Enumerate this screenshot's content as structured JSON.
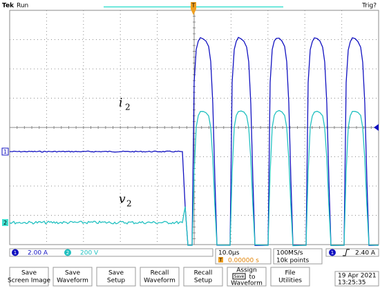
{
  "header": {
    "brand": "Tek",
    "status": "Run",
    "trigger_status": "Trig?",
    "trigger_marker": "T"
  },
  "traces": {
    "i": {
      "symbol": "i",
      "subscript": "2"
    },
    "v": {
      "symbol": "v",
      "subscript": "2"
    }
  },
  "channel_markers": [
    "1",
    "2"
  ],
  "status": {
    "ch1": {
      "number": "1",
      "scale": "2.00 A"
    },
    "ch2": {
      "number": "2",
      "scale": "200 V"
    },
    "timebase": "10.0µs",
    "position_marker": "T",
    "position": "0.00000 s",
    "sample_rate": "100MS/s",
    "record_length": "10k points",
    "trigger": {
      "channel": "1",
      "level": "2.40 A"
    }
  },
  "buttons": [
    [
      "Save",
      "Screen Image"
    ],
    [
      "Save",
      "Waveform"
    ],
    [
      "Save",
      "Setup"
    ],
    [
      "Recall",
      "Waveform"
    ],
    [
      "Recall",
      "Setup"
    ]
  ],
  "assign": {
    "top": "Assign",
    "key": "Save",
    "middle": "to",
    "bottom": "Waveform"
  },
  "file_button": [
    "File",
    "Utilities"
  ],
  "clock": {
    "date": "19 Apr 2021",
    "time": "13:25:35"
  }
}
